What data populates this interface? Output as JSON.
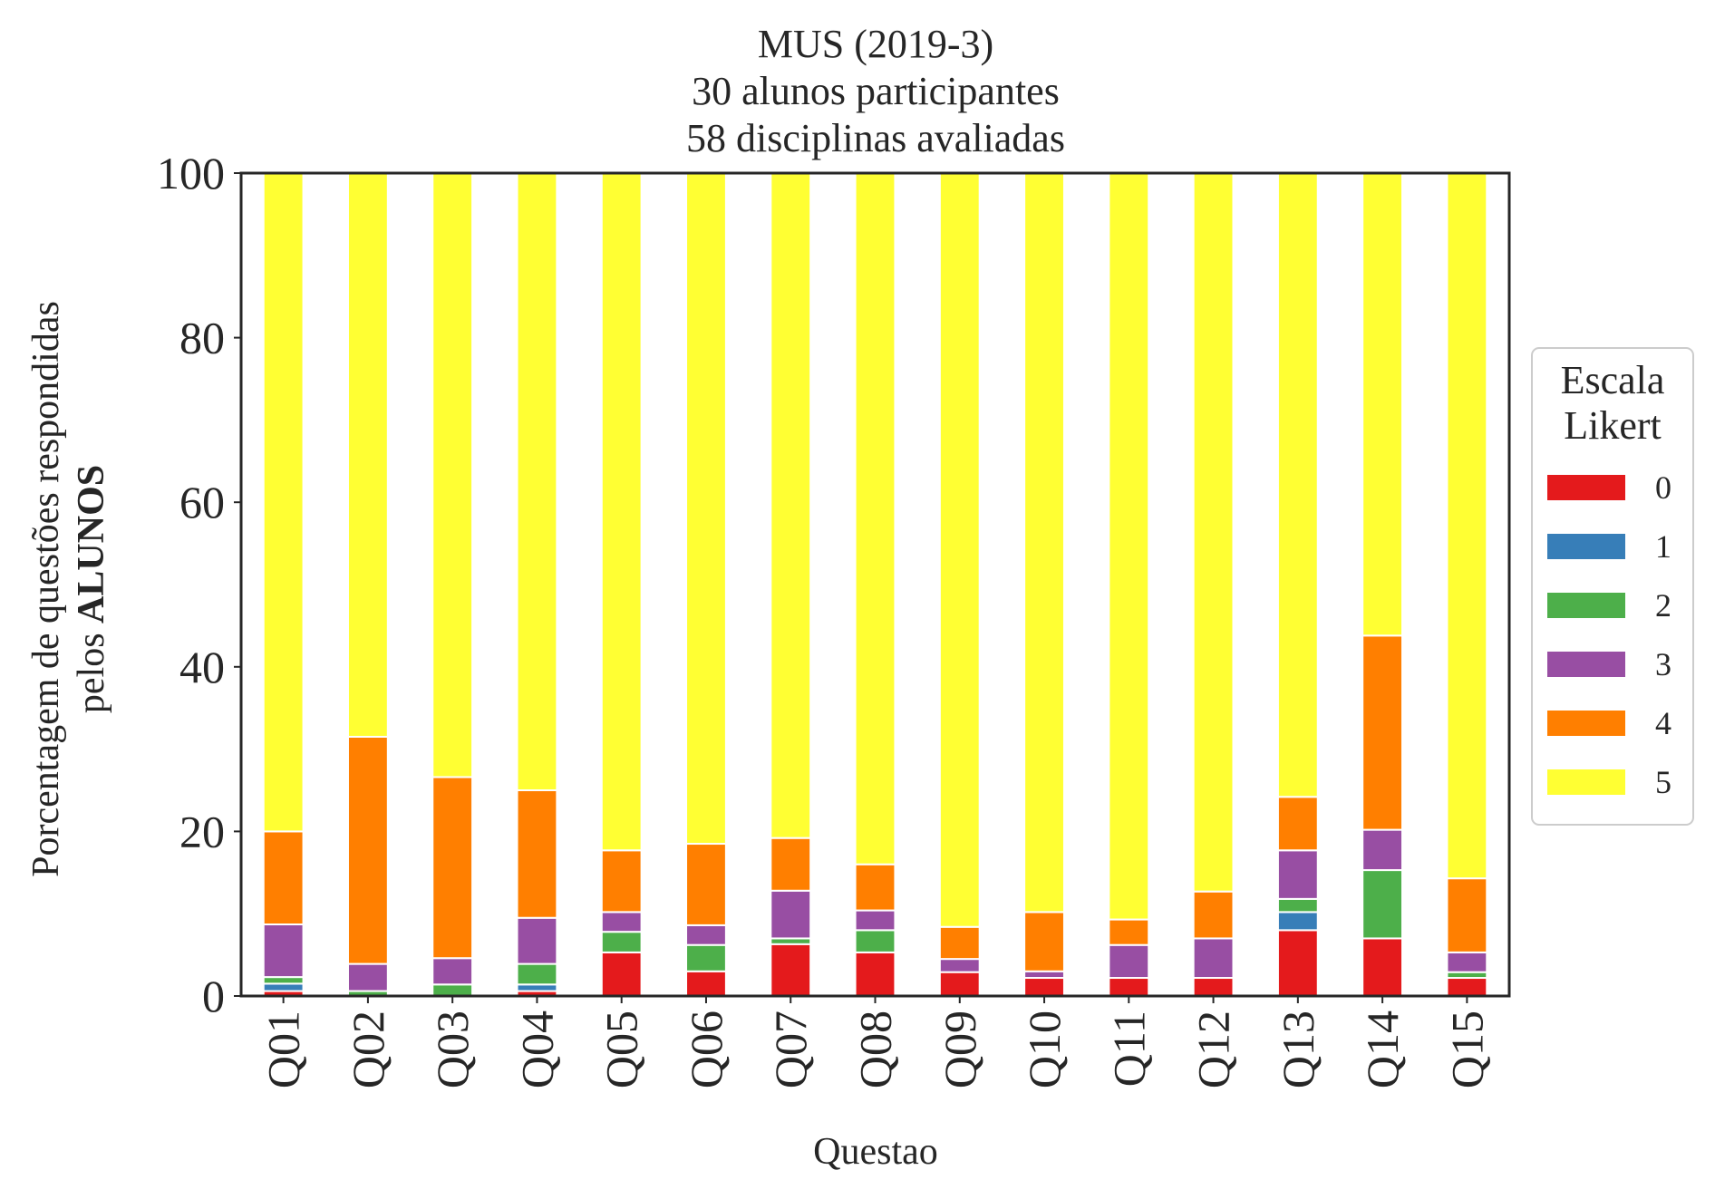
{
  "chart_data": {
    "type": "bar",
    "stacked": true,
    "title_lines": [
      "MUS (2019-3)",
      "30 alunos participantes",
      "58 disciplinas avaliadas"
    ],
    "xlabel": "Questao",
    "ylabel_line1": "Porcentagem de questões respondidas",
    "ylabel_line2_normal": "pelos ",
    "ylabel_line2_bold": "ALUNOS",
    "ylim": [
      0,
      100
    ],
    "yticks": [
      "0",
      "20",
      "40",
      "60",
      "80",
      "100"
    ],
    "legend_title_lines": [
      "Escala",
      "Likert"
    ],
    "legend_position": "right",
    "grid": false,
    "categories": [
      "Q01",
      "Q02",
      "Q03",
      "Q04",
      "Q05",
      "Q06",
      "Q07",
      "Q08",
      "Q09",
      "Q10",
      "Q11",
      "Q12",
      "Q13",
      "Q14",
      "Q15"
    ],
    "series": [
      {
        "name": "0",
        "color": "#e41a1c",
        "values": [
          0.6,
          0.0,
          0.0,
          0.6,
          5.3,
          3.0,
          6.3,
          5.3,
          2.9,
          2.2,
          2.2,
          2.2,
          8.0,
          7.0,
          2.2
        ]
      },
      {
        "name": "1",
        "color": "#377eb8",
        "values": [
          0.9,
          0.0,
          0.0,
          0.8,
          0.0,
          0.0,
          0.0,
          0.0,
          0.0,
          0.0,
          0.0,
          0.0,
          2.2,
          0.0,
          0.0
        ]
      },
      {
        "name": "2",
        "color": "#4daf4a",
        "values": [
          0.8,
          0.6,
          1.4,
          2.5,
          2.5,
          3.2,
          0.7,
          2.7,
          0.0,
          0.0,
          0.0,
          0.0,
          1.6,
          8.3,
          0.7
        ]
      },
      {
        "name": "3",
        "color": "#984ea3",
        "values": [
          6.4,
          3.3,
          3.2,
          5.6,
          2.4,
          2.4,
          5.8,
          2.4,
          1.6,
          0.8,
          4.0,
          4.8,
          5.9,
          4.9,
          2.4
        ]
      },
      {
        "name": "4",
        "color": "#ff7f00",
        "values": [
          11.3,
          27.6,
          22.0,
          15.5,
          7.5,
          9.9,
          6.4,
          5.6,
          3.9,
          7.2,
          3.1,
          5.7,
          6.5,
          23.6,
          9.0
        ]
      },
      {
        "name": "5",
        "color": "#ffff33",
        "values": [
          80.0,
          68.5,
          73.4,
          75.0,
          82.3,
          81.5,
          80.8,
          84.0,
          91.6,
          89.8,
          90.7,
          87.3,
          75.8,
          56.2,
          85.7
        ]
      }
    ]
  }
}
